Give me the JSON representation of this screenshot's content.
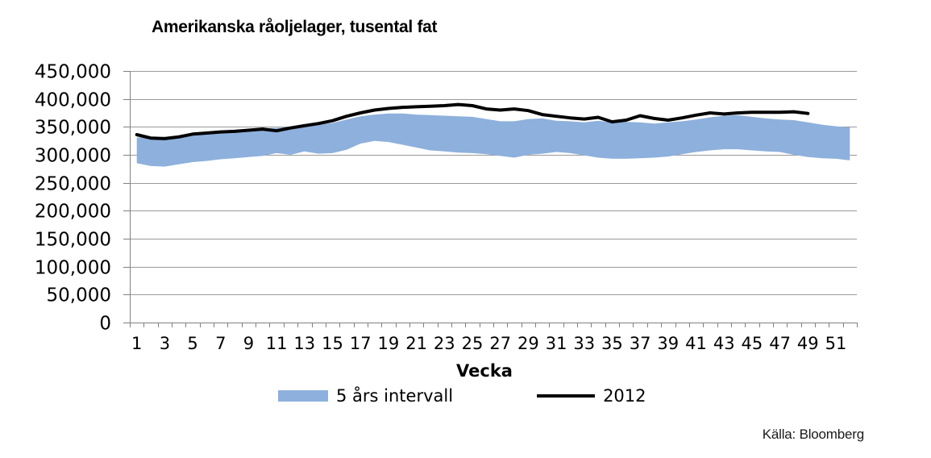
{
  "title": "Amerikanska råoljelager, tusental fat",
  "source": "Källa: Bloomberg",
  "legend": {
    "band_label": "5 års intervall",
    "line_label": "2012"
  },
  "colors": {
    "band": "#8EB0DC",
    "line": "#000000",
    "grid": "#9a9a9a",
    "axis": "#808080",
    "text": "#000000"
  },
  "chart_data": {
    "type": "area",
    "title": "Amerikanska råoljelager, tusental fat",
    "xlabel": "Vecka",
    "ylabel": "",
    "ylim": [
      0,
      450000
    ],
    "ytick_step": 50000,
    "ytick_labels": [
      "0",
      "50,000",
      "100,000",
      "150,000",
      "200,000",
      "250,000",
      "300,000",
      "350,000",
      "400,000",
      "450,000"
    ],
    "x_tick_labels": [
      "1",
      "3",
      "5",
      "7",
      "9",
      "11",
      "13",
      "15",
      "17",
      "19",
      "21",
      "23",
      "25",
      "27",
      "29",
      "31",
      "33",
      "35",
      "37",
      "39",
      "41",
      "43",
      "45",
      "47",
      "49",
      "51"
    ],
    "grid": "horizontal",
    "legend_position": "bottom",
    "x_weeks": [
      1,
      2,
      3,
      4,
      5,
      6,
      7,
      8,
      9,
      10,
      11,
      12,
      13,
      14,
      15,
      16,
      17,
      18,
      19,
      20,
      21,
      22,
      23,
      24,
      25,
      26,
      27,
      28,
      29,
      30,
      31,
      32,
      33,
      34,
      35,
      36,
      37,
      38,
      39,
      40,
      41,
      42,
      43,
      44,
      45,
      46,
      47,
      48,
      49,
      50,
      51,
      52
    ],
    "series": [
      {
        "name": "5 års intervall",
        "type": "band",
        "min": [
          285000,
          280000,
          279000,
          283000,
          287000,
          289000,
          292000,
          294000,
          296000,
          298000,
          303000,
          300000,
          306000,
          302000,
          303000,
          309000,
          320000,
          325000,
          323000,
          318000,
          313000,
          308000,
          306000,
          304000,
          303000,
          301000,
          298000,
          295000,
          300000,
          302000,
          305000,
          303000,
          299000,
          295000,
          293000,
          293000,
          294000,
          295000,
          297000,
          301000,
          305000,
          308000,
          310000,
          310000,
          308000,
          306000,
          305000,
          300000,
          296000,
          294000,
          293000,
          290000
        ],
        "max": [
          331000,
          331000,
          332000,
          335000,
          339000,
          341000,
          343000,
          344000,
          346000,
          348000,
          348000,
          350000,
          353000,
          354000,
          357000,
          363000,
          369000,
          372000,
          374000,
          374000,
          372000,
          371000,
          370000,
          369000,
          368000,
          364000,
          360000,
          360000,
          364000,
          365000,
          361000,
          360000,
          358000,
          361000,
          358000,
          359000,
          358000,
          356000,
          358000,
          360000,
          363000,
          367000,
          370000,
          371000,
          368000,
          365000,
          363000,
          362000,
          358000,
          354000,
          351000,
          349000
        ]
      },
      {
        "name": "2012",
        "type": "line",
        "values": [
          336000,
          330000,
          329000,
          332000,
          337000,
          339000,
          341000,
          342000,
          344000,
          346000,
          343000,
          348000,
          352000,
          356000,
          361000,
          369000,
          375000,
          380000,
          383000,
          385000,
          386000,
          387000,
          388000,
          390000,
          388000,
          382000,
          380000,
          382000,
          379000,
          372000,
          369000,
          366000,
          364000,
          367000,
          359000,
          362000,
          370000,
          365000,
          362000,
          366000,
          371000,
          375000,
          373000,
          375000,
          376000,
          376000,
          376000,
          377000,
          374000
        ]
      }
    ]
  }
}
